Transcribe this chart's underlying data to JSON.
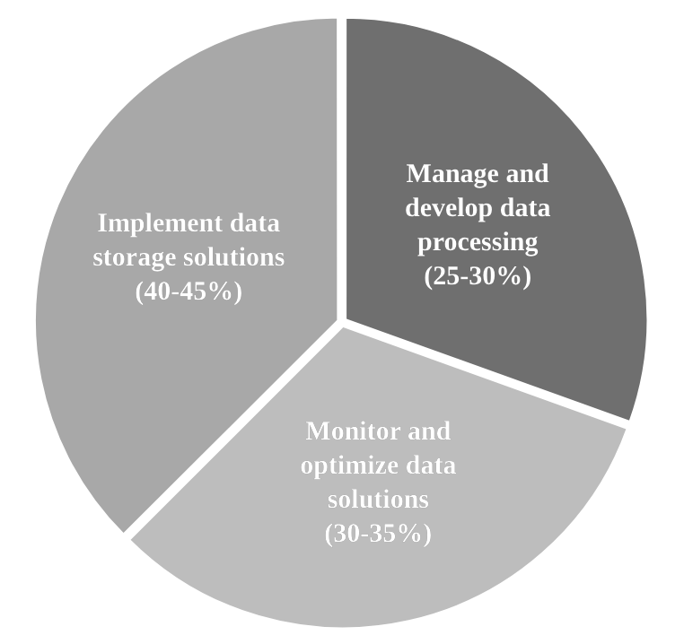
{
  "chart_data": {
    "type": "pie",
    "categories": [
      "Manage and develop data processing (25-30%)",
      "Monitor and optimize data solutions (30-35%)",
      "Implement data storage solutions (40-45%)"
    ],
    "values": [
      30.5,
      32,
      37.5
    ],
    "colors": [
      "#6f6f6f",
      "#bdbdbd",
      "#a8a8a8"
    ],
    "legend": false
  }
}
